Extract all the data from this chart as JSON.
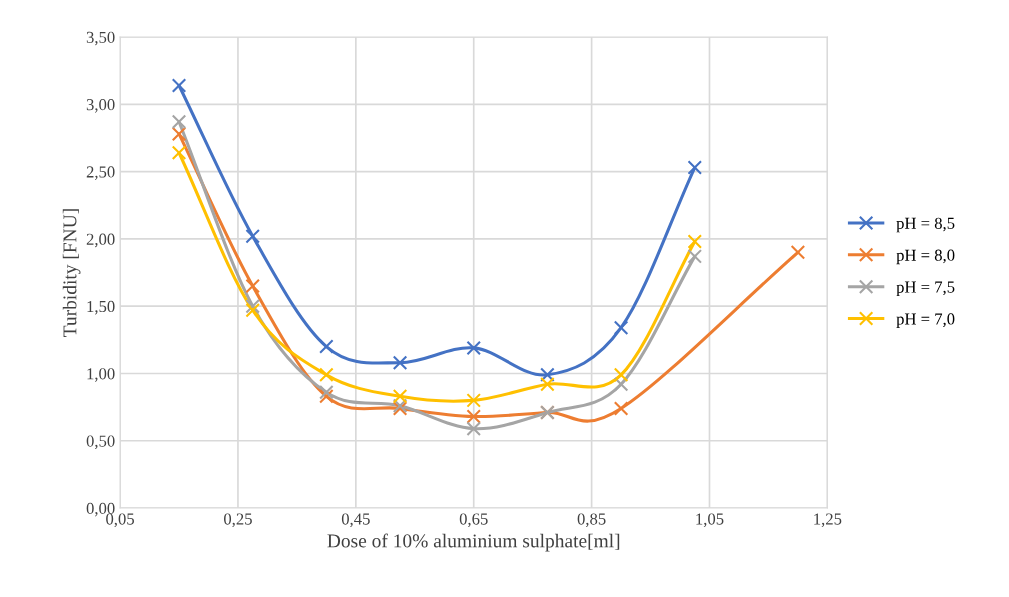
{
  "chart_data": {
    "type": "line",
    "xlabel": "Dose of 10% aluminium sulphate[ml]",
    "ylabel": "Turbidity [FNU]",
    "x": [
      0.15,
      0.275,
      0.4,
      0.525,
      0.65,
      0.775,
      0.9,
      1.025
    ],
    "series": [
      {
        "name": "pH = 8,5",
        "color": "#4472c4",
        "values": [
          3.14,
          2.02,
          1.2,
          1.08,
          1.19,
          0.99,
          1.34,
          2.53
        ]
      },
      {
        "name": "pH = 8,0",
        "color": "#ed7d31",
        "x": [
          0.15,
          0.275,
          0.4,
          0.525,
          0.65,
          0.775,
          0.9,
          1.2
        ],
        "values": [
          2.78,
          1.65,
          0.83,
          0.74,
          0.68,
          0.71,
          0.74,
          1.9
        ]
      },
      {
        "name": "pH = 7,5",
        "color": "#a5a5a5",
        "values": [
          2.87,
          1.5,
          0.86,
          0.76,
          0.59,
          0.71,
          0.92,
          1.87
        ]
      },
      {
        "name": "pH = 7,0",
        "color": "#ffc000",
        "values": [
          2.64,
          1.47,
          0.99,
          0.83,
          0.8,
          0.92,
          0.99,
          1.98
        ]
      }
    ],
    "xlim": [
      0.05,
      1.25
    ],
    "xticks": [
      {
        "value": 0.05,
        "label": "0,05"
      },
      {
        "value": 0.25,
        "label": "0,25"
      },
      {
        "value": 0.45,
        "label": "0,45"
      },
      {
        "value": 0.65,
        "label": "0,65"
      },
      {
        "value": 0.85,
        "label": "0,85"
      },
      {
        "value": 1.05,
        "label": "1,05"
      },
      {
        "value": 1.25,
        "label": "1,25"
      }
    ],
    "ylim": [
      0,
      3.5
    ],
    "yticks": [
      {
        "value": 0,
        "label": "0,00"
      },
      {
        "value": 0.5,
        "label": "0,50"
      },
      {
        "value": 1.0,
        "label": "1,00"
      },
      {
        "value": 1.5,
        "label": "1,50"
      },
      {
        "value": 2.0,
        "label": "2,00"
      },
      {
        "value": 2.5,
        "label": "2,50"
      },
      {
        "value": 3.0,
        "label": "3,00"
      },
      {
        "value": 3.5,
        "label": "3,50"
      }
    ],
    "grid": true,
    "legend": "right",
    "marker": "cross",
    "line_style": "solid"
  }
}
